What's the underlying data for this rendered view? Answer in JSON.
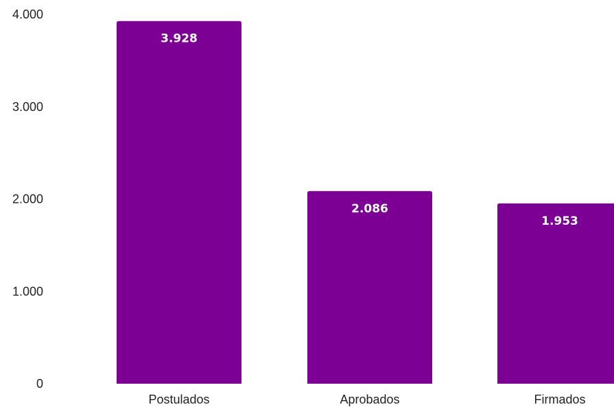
{
  "chart_data": {
    "type": "bar",
    "categories": [
      "Postulados",
      "Aprobados",
      "Firmados"
    ],
    "values": [
      3928,
      2086,
      1953
    ],
    "value_labels": [
      "3.928",
      "2.086",
      "1.953"
    ],
    "title": "",
    "xlabel": "",
    "ylabel": "",
    "ylim": [
      0,
      4000
    ],
    "y_ticks": [
      0,
      1000,
      2000,
      3000,
      4000
    ],
    "y_tick_labels": [
      "0",
      "1.000",
      "2.000",
      "3.000",
      "4.000"
    ],
    "grid": false,
    "legend": "none",
    "bar_color": "#7b0093",
    "label_color": "#ffffff"
  }
}
